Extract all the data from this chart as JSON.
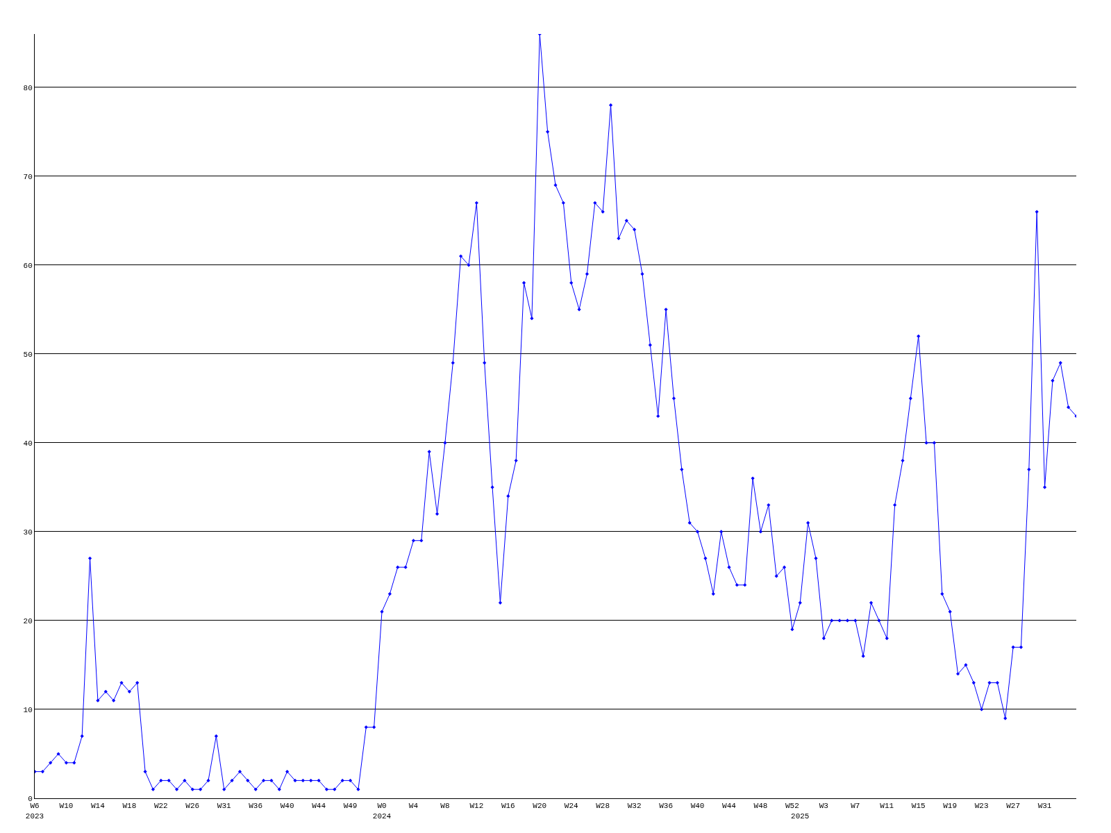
{
  "chart_data": {
    "type": "line",
    "categories": [
      "W6\n2023",
      null,
      null,
      null,
      "W10",
      null,
      null,
      null,
      "W14",
      null,
      null,
      null,
      "W18",
      null,
      null,
      null,
      "W22",
      null,
      null,
      null,
      "W26",
      null,
      null,
      null,
      "W31",
      null,
      null,
      null,
      "W36",
      null,
      null,
      null,
      "W40",
      null,
      null,
      null,
      "W44",
      null,
      null,
      null,
      "W49",
      null,
      null,
      null,
      "W0\n2024",
      null,
      null,
      null,
      "W4",
      null,
      null,
      null,
      "W8",
      null,
      null,
      null,
      "W12",
      null,
      null,
      null,
      "W16",
      null,
      null,
      null,
      "W20",
      null,
      null,
      null,
      "W24",
      null,
      null,
      null,
      "W28",
      null,
      null,
      null,
      "W32",
      null,
      null,
      null,
      "W36",
      null,
      null,
      null,
      "W40",
      null,
      null,
      null,
      "W44",
      null,
      null,
      null,
      "W48",
      null,
      null,
      null,
      "W52",
      "\n2025",
      null,
      null,
      "W3",
      null,
      null,
      null,
      "W7",
      null,
      null,
      null,
      "W11",
      null,
      null,
      null,
      "W15",
      null,
      null,
      null,
      "W19",
      null,
      null,
      null,
      "W23",
      null,
      null,
      null,
      "W27",
      null,
      null,
      null,
      "W31",
      null,
      null,
      null,
      null
    ],
    "series": [
      {
        "color": "#0000ff",
        "values": [
          3,
          3,
          4,
          5,
          4,
          4,
          7,
          27,
          11,
          12,
          11,
          13,
          12,
          13,
          3,
          1,
          2,
          2,
          1,
          2,
          1,
          1,
          2,
          7,
          1,
          2,
          3,
          2,
          1,
          2,
          2,
          1,
          3,
          2,
          2,
          2,
          2,
          1,
          1,
          2,
          2,
          1,
          8,
          8,
          21,
          23,
          26,
          26,
          29,
          29,
          39,
          32,
          40,
          49,
          61,
          60,
          67,
          49,
          35,
          22,
          34,
          38,
          58,
          54,
          86,
          75,
          69,
          67,
          58,
          55,
          59,
          67,
          66,
          78,
          63,
          65,
          64,
          59,
          51,
          43,
          55,
          45,
          37,
          31,
          30,
          27,
          23,
          30,
          26,
          24,
          24,
          36,
          30,
          33,
          25,
          26,
          19,
          22,
          31,
          27,
          18,
          20,
          20,
          20,
          20,
          16,
          22,
          20,
          18,
          33,
          38,
          45,
          52,
          40,
          40,
          23,
          21,
          14,
          15,
          13,
          10,
          13,
          13,
          9,
          17,
          17,
          37,
          66,
          35,
          47,
          49,
          44,
          43
        ]
      }
    ],
    "ylim": [
      0,
      86
    ],
    "yticks": [
      0,
      10,
      20,
      30,
      40,
      50,
      60,
      70,
      80
    ],
    "grid": "y",
    "legend": false,
    "marker": "diamond",
    "line_style": "solid"
  }
}
